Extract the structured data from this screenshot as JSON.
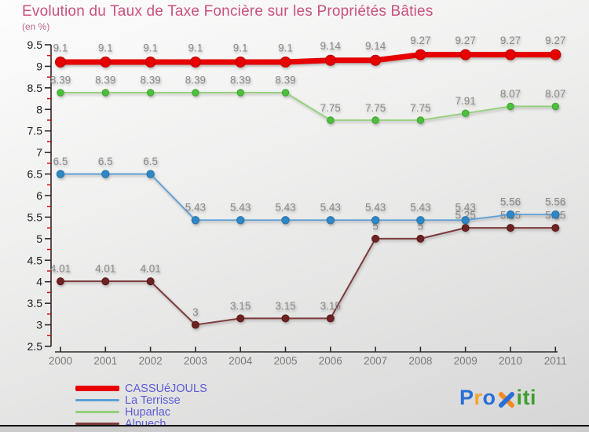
{
  "title": "Evolution du Taux de Taxe Foncière sur les Propriétés Bâties",
  "subtitle": "(en %)",
  "title_color": "#c9517f",
  "subtitle_color": "#bb6688",
  "chart_data": {
    "type": "line",
    "x": [
      2000,
      2001,
      2002,
      2003,
      2004,
      2005,
      2006,
      2007,
      2008,
      2009,
      2010,
      2011
    ],
    "ylim": [
      2.5,
      9.5
    ],
    "y_major_step": 0.5,
    "y_minor_step": 0.25,
    "grid": false,
    "legend_position": "bottom-left",
    "axis_style": {
      "axis_color": "#3a2222",
      "major_tick_color": "#2b2b2b",
      "minor_tick_color": "#cc1111",
      "y_label_color": "#1c1c1c",
      "x_label_color": "#7a7a7a",
      "value_label_color": "#8a8a8a"
    },
    "series": [
      {
        "name": "CASSUéJOULS",
        "values": [
          9.1,
          9.1,
          9.1,
          9.1,
          9.1,
          9.1,
          9.14,
          9.14,
          9.27,
          9.27,
          9.27,
          9.27
        ],
        "line_color": "#e60000",
        "marker_color": "#e60000",
        "marker_edge": "#bf0000",
        "line_width": 7,
        "marker_radius": 6.5
      },
      {
        "name": "La Terrisse",
        "values": [
          6.5,
          6.5,
          6.5,
          5.43,
          5.43,
          5.43,
          5.43,
          5.43,
          5.43,
          5.43,
          5.56,
          5.56
        ],
        "line_color": "#5b9ed8",
        "marker_color": "#2f87c6",
        "marker_edge": "#2672a8",
        "line_width": 1.8,
        "marker_radius": 4.7
      },
      {
        "name": "Huparlac",
        "values": [
          8.39,
          8.39,
          8.39,
          8.39,
          8.39,
          8.39,
          7.75,
          7.75,
          7.75,
          7.91,
          8.07,
          8.07
        ],
        "line_color": "#93d178",
        "marker_color": "#4cbf3c",
        "marker_edge": "#3da32f",
        "line_width": 1.8,
        "marker_radius": 4.2
      },
      {
        "name": "Alpuech",
        "values": [
          4.01,
          4.01,
          4.01,
          3,
          3.15,
          3.15,
          3.15,
          5,
          5,
          5.25,
          5.25,
          5.25
        ],
        "line_color": "#7d3b3b",
        "marker_color": "#6e2222",
        "marker_edge": "#5a1a1a",
        "line_width": 2,
        "marker_radius": 4.5
      }
    ]
  },
  "legend": {
    "text_color": "#5d5dd5"
  },
  "logo": {
    "text": "Proxiti",
    "letter_colors": [
      "#2a6fd6",
      "#f2a42c",
      "#2a6fd6",
      null,
      "#3f9f2f",
      "#3f9f2f",
      "#3f9f2f"
    ],
    "x_stroke_1": "#f28a1e",
    "x_stroke_2": "#2a6fd6"
  }
}
